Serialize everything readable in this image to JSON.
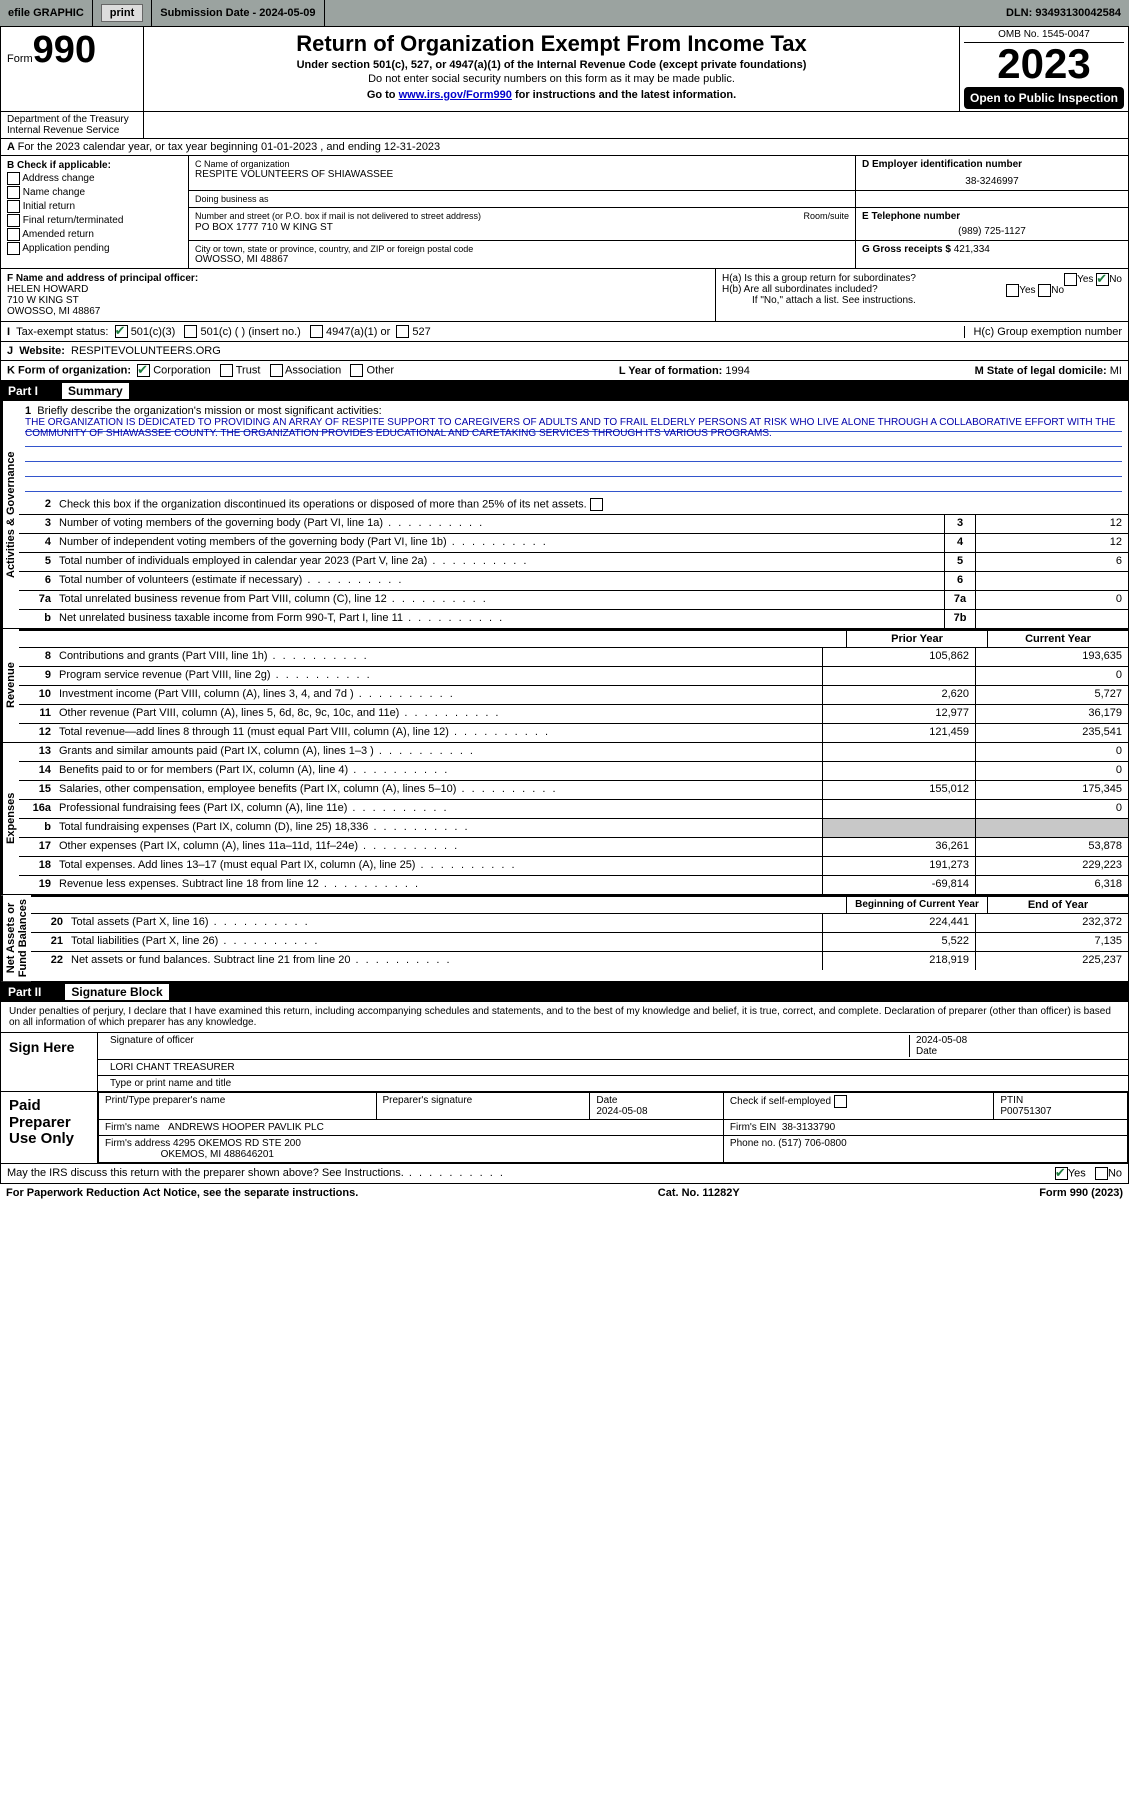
{
  "topbar": {
    "efile_label": "efile GRAPHIC",
    "print_btn": "print",
    "submission_label": "Submission Date - 2024-05-09",
    "dln": "DLN: 93493130042584"
  },
  "header": {
    "form_word": "Form",
    "form_num": "990",
    "title": "Return of Organization Exempt From Income Tax",
    "sub1": "Under section 501(c), 527, or 4947(a)(1) of the Internal Revenue Code (except private foundations)",
    "sub2": "Do not enter social security numbers on this form as it may be made public.",
    "sub3_pre": "Go to ",
    "sub3_link": "www.irs.gov/Form990",
    "sub3_post": " for instructions and the latest information.",
    "omb": "OMB No. 1545-0047",
    "year": "2023",
    "open": "Open to Public Inspection",
    "dept": "Department of the Treasury\nInternal Revenue Service"
  },
  "rowA": "For the 2023 calendar year, or tax year beginning 01-01-2023   , and ending 12-31-2023",
  "colB": {
    "title": "B Check if applicable:",
    "items": [
      "Address change",
      "Name change",
      "Initial return",
      "Final return/terminated",
      "Amended return",
      "Application pending"
    ]
  },
  "colC": {
    "name_lbl": "C Name of organization",
    "name": "RESPITE VOLUNTEERS OF SHIAWASSEE",
    "dba_lbl": "Doing business as",
    "dba": "",
    "addr_lbl": "Number and street (or P.O. box if mail is not delivered to street address)",
    "room_lbl": "Room/suite",
    "addr": "PO BOX 1777 710 W KING ST",
    "city_lbl": "City or town, state or province, country, and ZIP or foreign postal code",
    "city": "OWOSSO, MI  48867"
  },
  "colD": {
    "ein_lbl": "D Employer identification number",
    "ein": "38-3246997",
    "tel_lbl": "E Telephone number",
    "tel": "(989) 725-1127",
    "gross_lbl": "G Gross receipts $",
    "gross": "421,334"
  },
  "rowF": {
    "lbl": "F  Name and address of principal officer:",
    "name": "HELEN HOWARD",
    "addr1": "710 W KING ST",
    "addr2": "OWOSSO, MI  48867"
  },
  "rowH": {
    "ha": "H(a)  Is this a group return for subordinates?",
    "hb": "H(b)  Are all subordinates included?",
    "hb_note": "If \"No,\" attach a list. See instructions.",
    "hc": "H(c)  Group exemption number ",
    "yes": "Yes",
    "no": "No"
  },
  "rowI": {
    "lbl": "Tax-exempt status:",
    "o1": "501(c)(3)",
    "o2": "501(c) (   ) (insert no.)",
    "o3": "4947(a)(1) or",
    "o4": "527"
  },
  "rowJ": {
    "lbl": "Website: ",
    "val": "RESPITEVOLUNTEERS.ORG"
  },
  "rowK": {
    "lbl": "K Form of organization:",
    "opts": [
      "Corporation",
      "Trust",
      "Association",
      "Other"
    ],
    "L_lbl": "L Year of formation:",
    "L_val": "1994",
    "M_lbl": "M State of legal domicile:",
    "M_val": "MI"
  },
  "part1": {
    "label": "Part I",
    "title": "Summary"
  },
  "mission": {
    "q": "Briefly describe the organization's mission or most significant activities:",
    "text": "THE ORGANIZATION IS DEDICATED TO PROVIDING AN ARRAY OF RESPITE SUPPORT TO CAREGIVERS OF ADULTS AND TO FRAIL ELDERLY PERSONS AT RISK WHO LIVE ALONE THROUGH A COLLABORATIVE EFFORT WITH THE COMMUNITY OF SHIAWASSEE COUNTY. THE ORGANIZATION PROVIDES EDUCATIONAL AND CARETAKING SERVICES THROUGH ITS VARIOUS PROGRAMS."
  },
  "gov_lines": {
    "l2": "Check this box      if the organization discontinued its operations or disposed of more than 25% of its net assets.",
    "l3": {
      "d": "Number of voting members of the governing body (Part VI, line 1a)",
      "b": "3",
      "v": "12"
    },
    "l4": {
      "d": "Number of independent voting members of the governing body (Part VI, line 1b)",
      "b": "4",
      "v": "12"
    },
    "l5": {
      "d": "Total number of individuals employed in calendar year 2023 (Part V, line 2a)",
      "b": "5",
      "v": "6"
    },
    "l6": {
      "d": "Total number of volunteers (estimate if necessary)",
      "b": "6",
      "v": ""
    },
    "l7a": {
      "d": "Total unrelated business revenue from Part VIII, column (C), line 12",
      "b": "7a",
      "v": "0"
    },
    "l7b": {
      "d": "Net unrelated business taxable income from Form 990-T, Part I, line 11",
      "b": "7b",
      "v": ""
    }
  },
  "rev_head": {
    "c1": "Prior Year",
    "c2": "Current Year"
  },
  "rev": [
    {
      "n": "8",
      "d": "Contributions and grants (Part VIII, line 1h)",
      "p": "105,862",
      "c": "193,635"
    },
    {
      "n": "9",
      "d": "Program service revenue (Part VIII, line 2g)",
      "p": "",
      "c": "0"
    },
    {
      "n": "10",
      "d": "Investment income (Part VIII, column (A), lines 3, 4, and 7d )",
      "p": "2,620",
      "c": "5,727"
    },
    {
      "n": "11",
      "d": "Other revenue (Part VIII, column (A), lines 5, 6d, 8c, 9c, 10c, and 11e)",
      "p": "12,977",
      "c": "36,179"
    },
    {
      "n": "12",
      "d": "Total revenue—add lines 8 through 11 (must equal Part VIII, column (A), line 12)",
      "p": "121,459",
      "c": "235,541"
    }
  ],
  "exp": [
    {
      "n": "13",
      "d": "Grants and similar amounts paid (Part IX, column (A), lines 1–3 )",
      "p": "",
      "c": "0"
    },
    {
      "n": "14",
      "d": "Benefits paid to or for members (Part IX, column (A), line 4)",
      "p": "",
      "c": "0"
    },
    {
      "n": "15",
      "d": "Salaries, other compensation, employee benefits (Part IX, column (A), lines 5–10)",
      "p": "155,012",
      "c": "175,345"
    },
    {
      "n": "16a",
      "d": "Professional fundraising fees (Part IX, column (A), line 11e)",
      "p": "",
      "c": "0"
    },
    {
      "n": "b",
      "d": "Total fundraising expenses (Part IX, column (D), line 25) 18,336",
      "p": "SHADE",
      "c": "SHADE"
    },
    {
      "n": "17",
      "d": "Other expenses (Part IX, column (A), lines 11a–11d, 11f–24e)",
      "p": "36,261",
      "c": "53,878"
    },
    {
      "n": "18",
      "d": "Total expenses. Add lines 13–17 (must equal Part IX, column (A), line 25)",
      "p": "191,273",
      "c": "229,223"
    },
    {
      "n": "19",
      "d": "Revenue less expenses. Subtract line 18 from line 12",
      "p": "-69,814",
      "c": "6,318"
    }
  ],
  "na_head": {
    "c1": "Beginning of Current Year",
    "c2": "End of Year"
  },
  "na": [
    {
      "n": "20",
      "d": "Total assets (Part X, line 16)",
      "p": "224,441",
      "c": "232,372"
    },
    {
      "n": "21",
      "d": "Total liabilities (Part X, line 26)",
      "p": "5,522",
      "c": "7,135"
    },
    {
      "n": "22",
      "d": "Net assets or fund balances. Subtract line 21 from line 20",
      "p": "218,919",
      "c": "225,237"
    }
  ],
  "part2": {
    "label": "Part II",
    "title": "Signature Block"
  },
  "sig": {
    "penalty": "Under penalties of perjury, I declare that I have examined this return, including accompanying schedules and statements, and to the best of my knowledge and belief, it is true, correct, and complete. Declaration of preparer (other than officer) is based on all information of which preparer has any knowledge.",
    "sign_here": "Sign Here",
    "sig_officer_lbl": "Signature of officer",
    "date_lbl": "Date",
    "date": "2024-05-08",
    "officer_name": "LORI CHANT TREASURER",
    "type_lbl": "Type or print name and title"
  },
  "paid": {
    "label": "Paid Preparer Use Only",
    "h1": "Print/Type preparer's name",
    "h2": "Preparer's signature",
    "h3": "Date",
    "h4": "Check       if self-employed",
    "h5": "PTIN",
    "date": "2024-05-08",
    "ptin": "P00751307",
    "firm_lbl": "Firm's name",
    "firm": "ANDREWS HOOPER PAVLIK PLC",
    "ein_lbl": "Firm's EIN",
    "ein": "38-3133790",
    "addr_lbl": "Firm's address",
    "addr1": "4295 OKEMOS RD STE 200",
    "addr2": "OKEMOS, MI  488646201",
    "phone_lbl": "Phone no.",
    "phone": "(517) 706-0800"
  },
  "footer": {
    "discuss": "May the IRS discuss this return with the preparer shown above? See Instructions.",
    "yes": "Yes",
    "no": "No",
    "pra": "For Paperwork Reduction Act Notice, see the separate instructions.",
    "cat": "Cat. No. 11282Y",
    "form": "Form 990 (2023)"
  }
}
